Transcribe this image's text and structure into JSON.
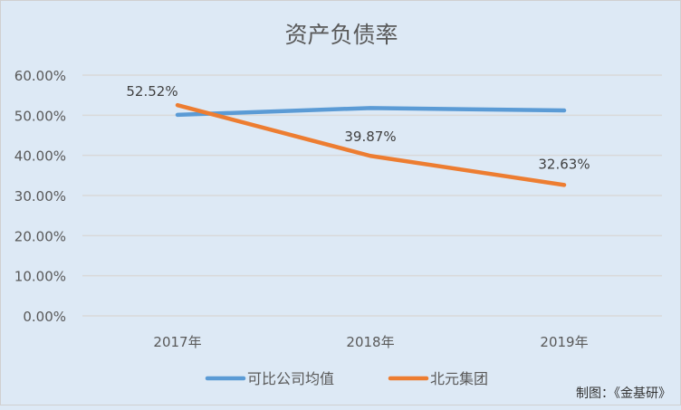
{
  "chart_data": {
    "type": "line",
    "title": "资产负债率",
    "categories": [
      "2017年",
      "2018年",
      "2019年"
    ],
    "series": [
      {
        "name": "可比公司均值",
        "values": [
          50.1,
          51.8,
          51.2
        ],
        "color": "#5b9bd5",
        "labels": [
          null,
          null,
          null
        ]
      },
      {
        "name": "北元集团",
        "values": [
          52.52,
          39.87,
          32.63
        ],
        "color": "#ed7d31",
        "labels": [
          "52.52%",
          "39.87%",
          "32.63%"
        ]
      }
    ],
    "yticks": [
      "0.00%",
      "10.00%",
      "20.00%",
      "30.00%",
      "40.00%",
      "50.00%",
      "60.00%"
    ],
    "ylim": [
      0,
      60
    ],
    "grid": true,
    "legend": "bottom",
    "xlabel": "",
    "ylabel": ""
  },
  "credit": "制图：《金基研》"
}
